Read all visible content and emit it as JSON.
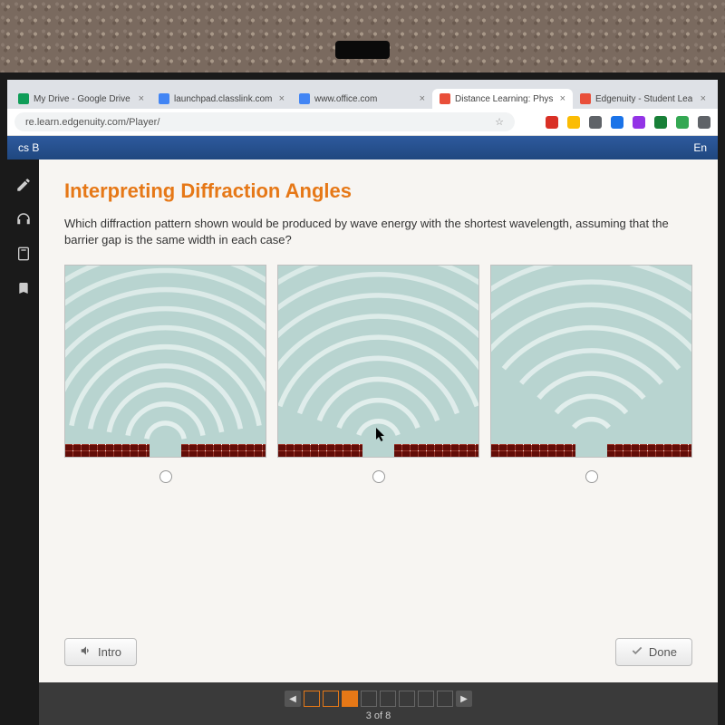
{
  "browser": {
    "tabs": [
      {
        "title": "My Drive - Google Drive",
        "favicon_color": "#0f9d58",
        "active": false
      },
      {
        "title": "launchpad.classlink.com",
        "favicon_color": "#4285f4",
        "active": false
      },
      {
        "title": "www.office.com",
        "favicon_color": "#4285f4",
        "active": false
      },
      {
        "title": "Distance Learning: Phys",
        "favicon_color": "#e94f3a",
        "active": true
      },
      {
        "title": "Edgenuity - Student Lea",
        "favicon_color": "#e94f3a",
        "active": false
      }
    ],
    "url": "re.learn.edgenuity.com/Player/",
    "star_color": "#5f6368",
    "ext_icons": [
      "#ffffff",
      "#d93025",
      "#fbbc04",
      "#5f6368",
      "#1a73e8",
      "#9334e6",
      "#188038",
      "#34a853",
      "#5f6368"
    ]
  },
  "app": {
    "header_left": "cs B",
    "header_right": "En",
    "title": "Interpreting Diffraction Angles",
    "question": "Which diffraction pattern shown would be produced by wave energy with the shortest wavelength, assuming that the barrier gap is the same width in each case?",
    "intro_label": "Intro",
    "done_label": "Done",
    "diagrams": {
      "bg_color": "#b8d4d0",
      "wave_color": "#e8f2f0",
      "brick_color": "#9e3a2e",
      "options": [
        {
          "spread_deg": 160,
          "rings": 10,
          "spacing": 20
        },
        {
          "spread_deg": 140,
          "rings": 9,
          "spacing": 22
        },
        {
          "spread_deg": 100,
          "rings": 8,
          "spacing": 24
        }
      ]
    },
    "pagination": {
      "current": 3,
      "total": 8,
      "label": "3 of 8"
    }
  },
  "colors": {
    "accent_orange": "#e67817",
    "header_blue": "#2e5a9e"
  }
}
